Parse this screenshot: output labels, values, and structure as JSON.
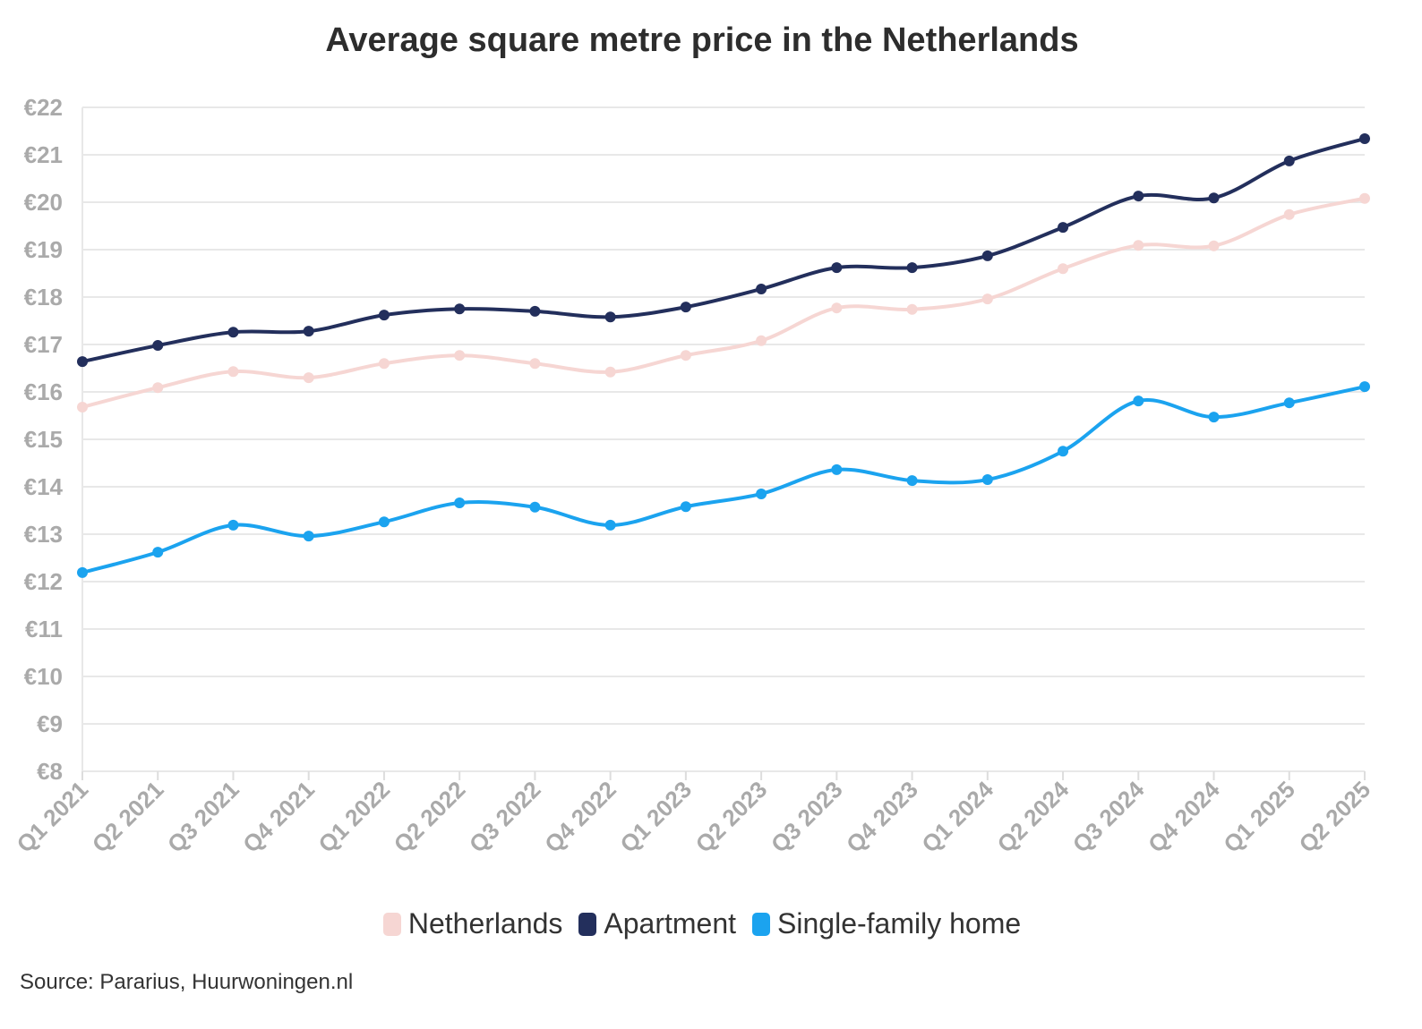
{
  "chart_data": {
    "type": "line",
    "title": "Average square metre price in the Netherlands",
    "categories": [
      "Q1 2021",
      "Q2 2021",
      "Q3 2021",
      "Q4 2021",
      "Q1 2022",
      "Q2 2022",
      "Q3 2022",
      "Q4 2022",
      "Q1 2023",
      "Q2 2023",
      "Q3 2023",
      "Q4 2023",
      "Q1 2024",
      "Q2 2024",
      "Q3 2024",
      "Q4 2024",
      "Q1 2025",
      "Q2 2025"
    ],
    "ylim": [
      8,
      22
    ],
    "yticks": [
      8,
      9,
      10,
      11,
      12,
      13,
      14,
      15,
      16,
      17,
      18,
      19,
      20,
      21,
      22
    ],
    "ytick_prefix": "€",
    "grid": true,
    "legend_position": "bottom",
    "series": [
      {
        "name": "Netherlands",
        "color": "#f6d6d3",
        "values": [
          15.68,
          16.09,
          16.43,
          16.3,
          16.6,
          16.77,
          16.6,
          16.42,
          16.77,
          17.08,
          17.77,
          17.74,
          17.96,
          18.6,
          19.09,
          19.08,
          19.74,
          20.08
        ]
      },
      {
        "name": "Apartment",
        "color": "#232f5c",
        "values": [
          16.64,
          16.98,
          17.26,
          17.28,
          17.62,
          17.75,
          17.7,
          17.58,
          17.79,
          18.17,
          18.62,
          18.62,
          18.87,
          19.47,
          20.13,
          20.09,
          20.87,
          21.34
        ]
      },
      {
        "name": "Single-family home",
        "color": "#1ba3ef",
        "values": [
          12.19,
          12.62,
          13.19,
          12.96,
          13.26,
          13.66,
          13.57,
          13.19,
          13.58,
          13.85,
          14.36,
          14.13,
          14.15,
          14.75,
          15.81,
          15.47,
          15.77,
          16.11
        ]
      }
    ],
    "source": "Source: Pararius, Huurwoningen.nl"
  }
}
